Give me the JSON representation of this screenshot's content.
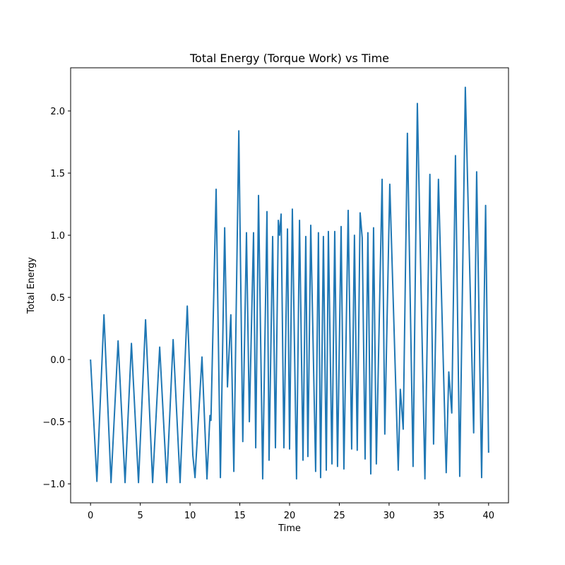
{
  "chart_data": {
    "type": "line",
    "title": "Total Energy (Torque Work) vs Time",
    "x_label": "Time",
    "y_label": "Total Energy",
    "color": "#1f77b4",
    "x": [
      0,
      0.64,
      1.35,
      2.06,
      2.77,
      3.47,
      4.11,
      4.82,
      5.53,
      6.24,
      6.95,
      7.66,
      8.3,
      9.0,
      9.72,
      10.28,
      10.5,
      11.2,
      11.7,
      12.0,
      12.1,
      12.62,
      13.05,
      13.48,
      13.76,
      14.1,
      14.4,
      14.9,
      15.3,
      15.67,
      15.96,
      16.38,
      16.6,
      16.88,
      17.3,
      17.73,
      17.94,
      18.3,
      18.58,
      18.87,
      19.0,
      19.15,
      19.43,
      19.79,
      20.0,
      20.28,
      20.7,
      21.0,
      21.35,
      21.63,
      21.84,
      22.13,
      22.62,
      22.9,
      23.12,
      23.4,
      23.69,
      23.9,
      24.26,
      24.54,
      24.82,
      25.18,
      25.46,
      25.89,
      26.24,
      26.52,
      26.8,
      27.09,
      27.3,
      27.59,
      27.87,
      28.16,
      28.44,
      28.72,
      29.3,
      29.57,
      30.07,
      30.92,
      31.13,
      31.42,
      31.84,
      32.41,
      32.84,
      33.6,
      34.1,
      34.47,
      34.96,
      35.74,
      36.0,
      36.3,
      36.67,
      37.1,
      37.66,
      38.5,
      38.8,
      39.3,
      39.7,
      40.0
    ],
    "values": [
      0,
      -0.98,
      0.36,
      -0.99,
      0.15,
      -0.99,
      0.13,
      -0.99,
      0.32,
      -0.99,
      0.1,
      -0.99,
      0.16,
      -0.99,
      0.43,
      -0.77,
      -0.95,
      0.02,
      -0.96,
      -0.45,
      -0.49,
      1.37,
      -0.95,
      1.06,
      -0.22,
      0.36,
      -0.9,
      1.84,
      -0.66,
      1.02,
      -0.5,
      1.02,
      -0.71,
      1.32,
      -0.96,
      1.19,
      -0.81,
      0.99,
      -0.71,
      1.12,
      1.0,
      1.17,
      -0.71,
      1.05,
      -0.72,
      1.21,
      -0.96,
      1.12,
      -0.81,
      0.99,
      -0.78,
      1.08,
      -0.9,
      1.02,
      -0.95,
      0.99,
      -0.89,
      1.03,
      -0.84,
      1.03,
      -0.86,
      1.07,
      -0.88,
      1.2,
      -0.72,
      1.0,
      -0.73,
      1.18,
      0.98,
      -0.8,
      1.02,
      -0.92,
      1.06,
      -0.84,
      1.45,
      -0.6,
      1.41,
      -0.89,
      -0.24,
      -0.56,
      1.82,
      -0.86,
      2.06,
      -0.96,
      1.49,
      -0.68,
      1.45,
      -0.91,
      -0.1,
      -0.43,
      1.64,
      -0.94,
      2.19,
      -0.59,
      1.51,
      -0.95,
      1.24,
      -0.75
    ],
    "xlim": [
      -2,
      42
    ],
    "ylim": [
      -1.153,
      2.347
    ],
    "xticks": [
      0,
      5,
      10,
      15,
      20,
      25,
      30,
      35,
      40
    ],
    "yticks": [
      {
        "value": -1,
        "label": "−1.0"
      },
      {
        "value": -0.5,
        "label": "−0.5"
      },
      {
        "value": 0,
        "label": "0.0"
      },
      {
        "value": 0.5,
        "label": "0.5"
      },
      {
        "value": 1,
        "label": "1.0"
      },
      {
        "value": 1.5,
        "label": "1.5"
      },
      {
        "value": 2,
        "label": "2.0"
      }
    ]
  }
}
